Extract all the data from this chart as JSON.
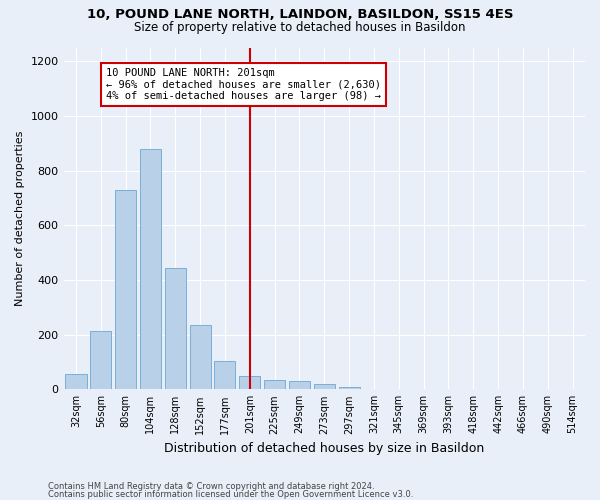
{
  "title1": "10, POUND LANE NORTH, LAINDON, BASILDON, SS15 4ES",
  "title2": "Size of property relative to detached houses in Basildon",
  "xlabel": "Distribution of detached houses by size in Basildon",
  "ylabel": "Number of detached properties",
  "bin_labels": [
    "32sqm",
    "56sqm",
    "80sqm",
    "104sqm",
    "128sqm",
    "152sqm",
    "177sqm",
    "201sqm",
    "225sqm",
    "249sqm",
    "273sqm",
    "297sqm",
    "321sqm",
    "345sqm",
    "369sqm",
    "393sqm",
    "418sqm",
    "442sqm",
    "466sqm",
    "490sqm",
    "514sqm"
  ],
  "bar_heights": [
    55,
    215,
    730,
    880,
    445,
    235,
    105,
    48,
    35,
    30,
    20,
    10,
    0,
    0,
    0,
    0,
    0,
    0,
    0,
    0,
    0
  ],
  "bar_color": "#b8d0e8",
  "bar_edgecolor": "#7aafd4",
  "property_line_x": 7,
  "property_line_color": "#cc0000",
  "annotation_text": "10 POUND LANE NORTH: 201sqm\n← 96% of detached houses are smaller (2,630)\n4% of semi-detached houses are larger (98) →",
  "annotation_box_edgecolor": "#cc0000",
  "annotation_box_facecolor": "#ffffff",
  "ylim": [
    0,
    1250
  ],
  "yticks": [
    0,
    200,
    400,
    600,
    800,
    1000,
    1200
  ],
  "footer1": "Contains HM Land Registry data © Crown copyright and database right 2024.",
  "footer2": "Contains public sector information licensed under the Open Government Licence v3.0.",
  "bg_color": "#e8eff8",
  "plot_bg_color": "#e8eff8"
}
